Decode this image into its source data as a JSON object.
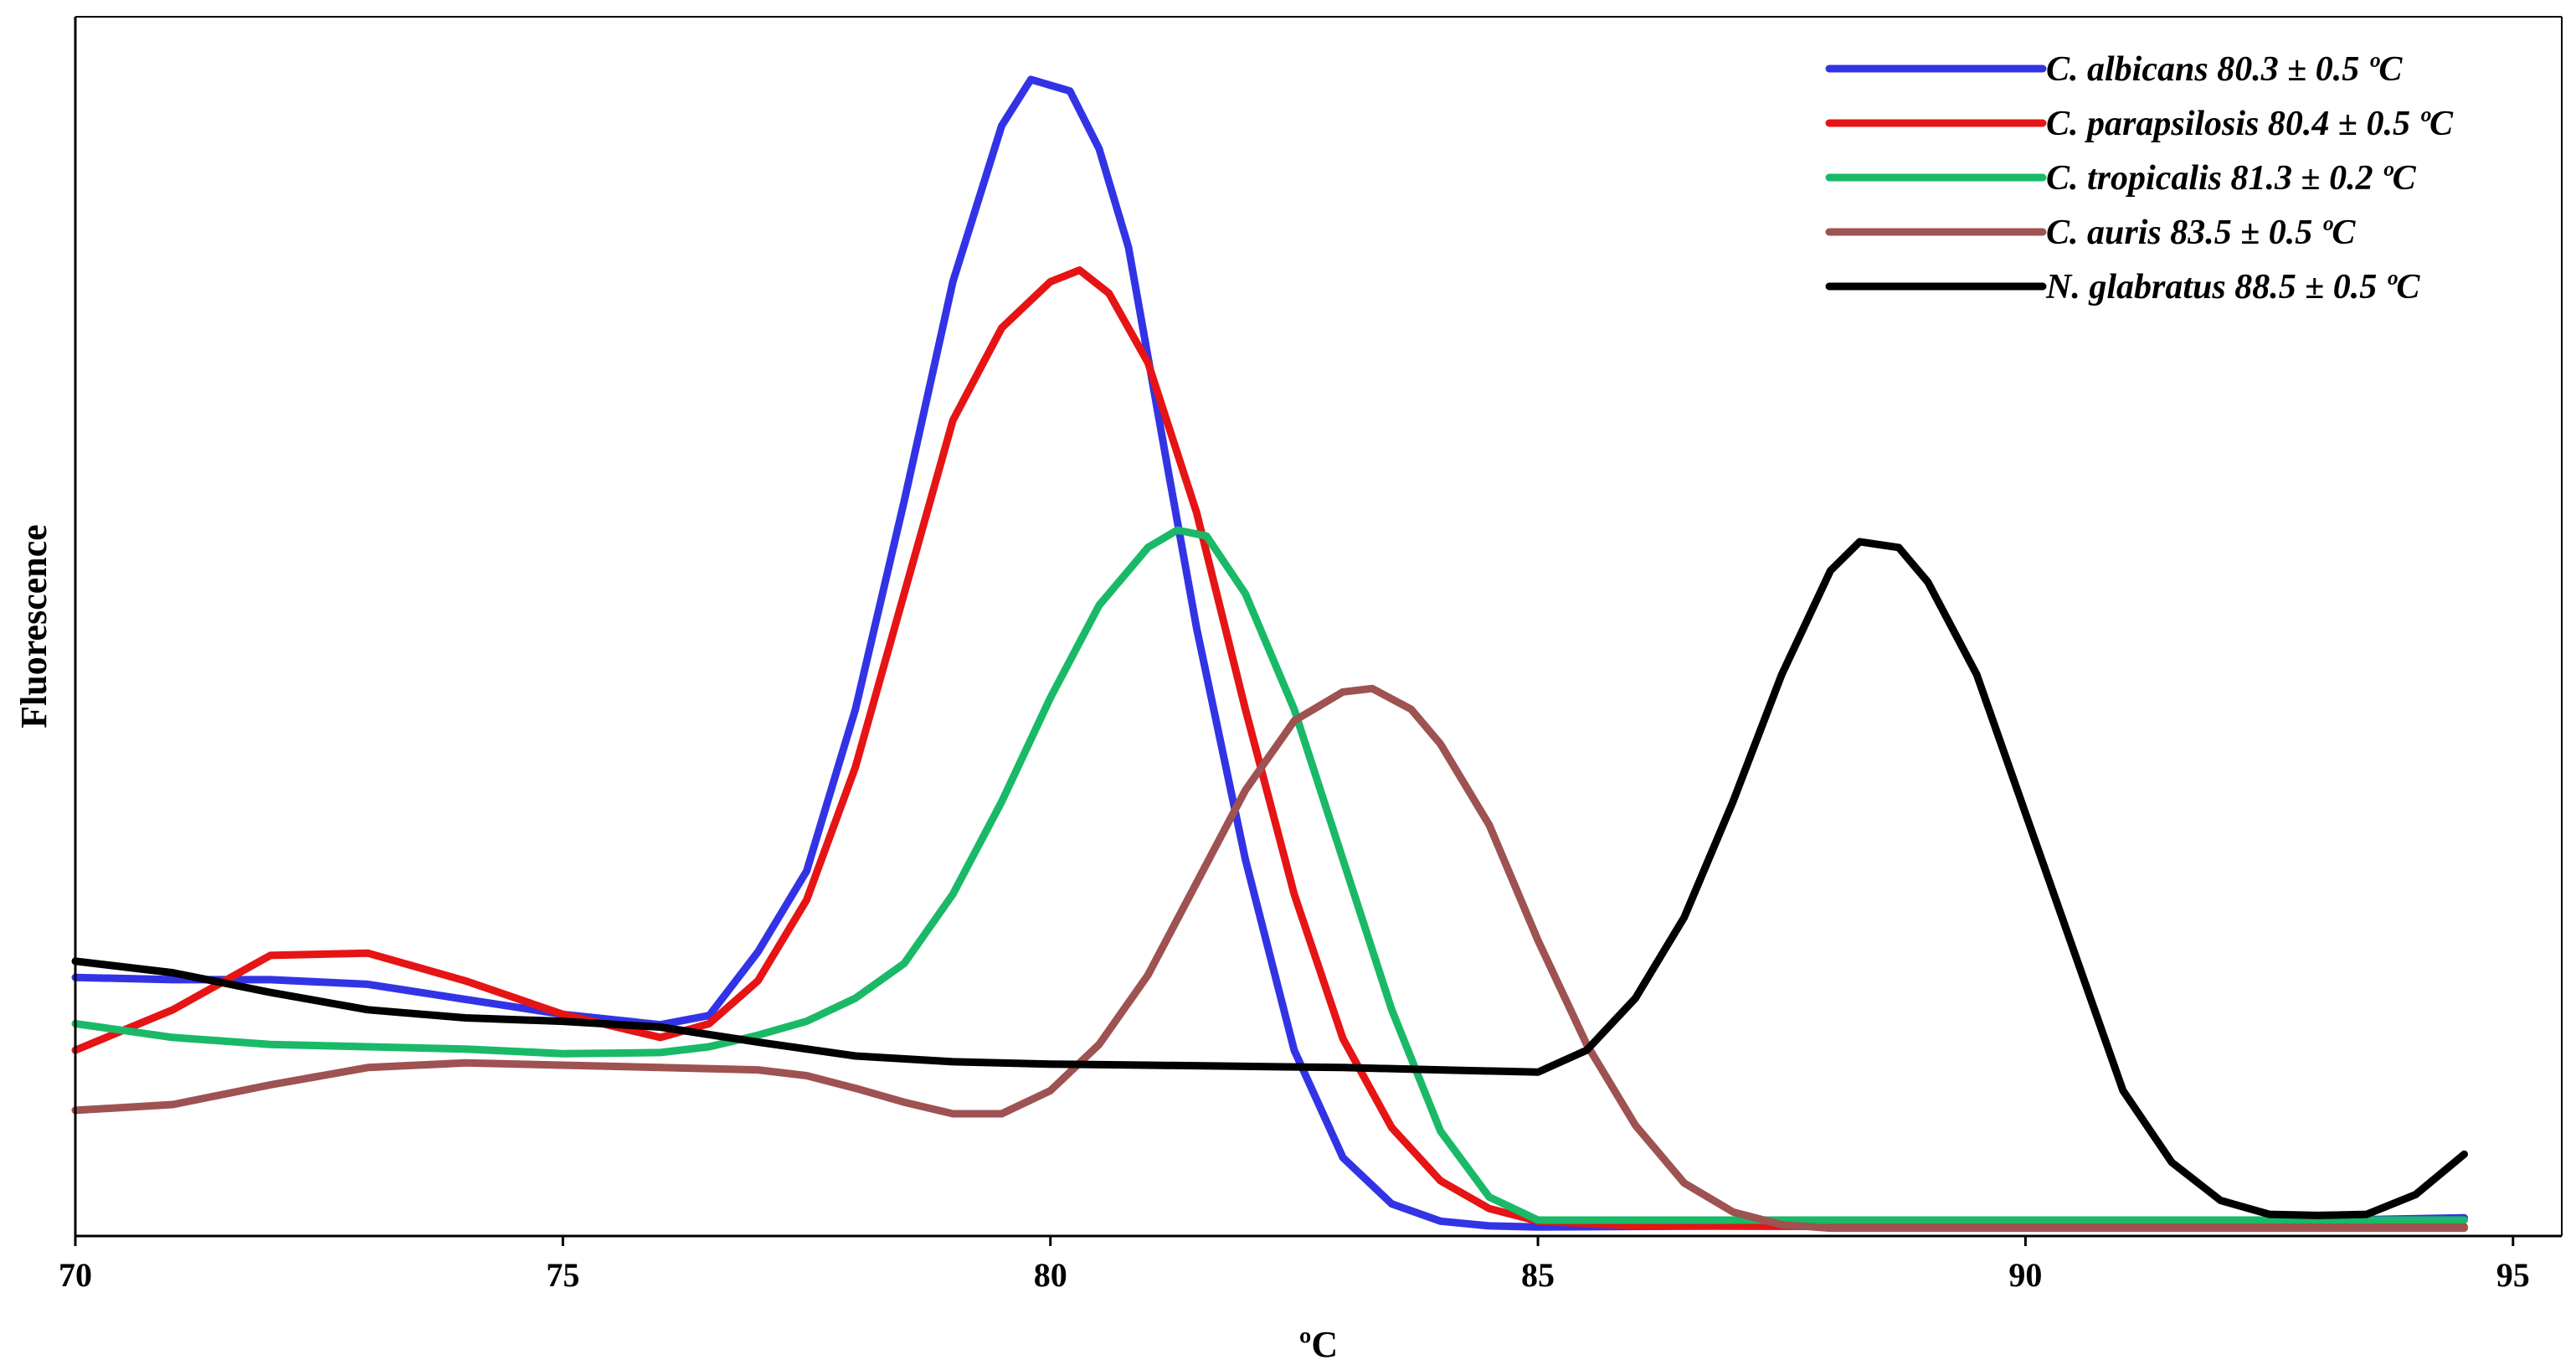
{
  "chart_data": {
    "type": "line",
    "xlabel": "ºC",
    "ylabel": "Fluorescence",
    "xlim": [
      70,
      95.5
    ],
    "ylim": [
      0,
      1
    ],
    "x_ticks": [
      "70",
      "75",
      "80",
      "85",
      "90",
      "95"
    ],
    "grid": false,
    "legend_position": "top-right",
    "series": [
      {
        "name": "C. albicans 80.3 ± 0.5 ºC",
        "color": "#3333e6",
        "x": [
          70,
          71,
          72,
          73,
          74,
          75,
          76,
          76.5,
          77,
          77.5,
          78,
          78.5,
          79,
          79.5,
          79.8,
          80.2,
          80.5,
          80.8,
          81.2,
          81.5,
          82,
          82.5,
          83,
          83.5,
          84,
          84.5,
          85,
          87,
          90,
          92,
          94.5
        ],
        "y": [
          0.218,
          0.216,
          0.216,
          0.212,
          0.199,
          0.186,
          0.177,
          0.185,
          0.24,
          0.31,
          0.45,
          0.63,
          0.82,
          0.955,
          0.995,
          0.985,
          0.935,
          0.85,
          0.66,
          0.52,
          0.32,
          0.155,
          0.062,
          0.022,
          0.007,
          0.003,
          0.002,
          0.003,
          0.004,
          0.006,
          0.01
        ]
      },
      {
        "name": "C. parapsilosis 80.4 ± 0.5 ºC",
        "color": "#e61414",
        "x": [
          70,
          71,
          72,
          73,
          74,
          75,
          76,
          76.5,
          77,
          77.5,
          78,
          78.5,
          79,
          79.5,
          80,
          80.3,
          80.6,
          81,
          81.5,
          82,
          82.5,
          83,
          83.5,
          84,
          84.5,
          85,
          86,
          90,
          94.5
        ],
        "y": [
          0.155,
          0.19,
          0.237,
          0.239,
          0.215,
          0.186,
          0.166,
          0.178,
          0.215,
          0.285,
          0.4,
          0.55,
          0.7,
          0.78,
          0.82,
          0.83,
          0.81,
          0.75,
          0.62,
          0.45,
          0.29,
          0.165,
          0.088,
          0.042,
          0.018,
          0.007,
          0.003,
          0.002,
          0.002
        ]
      },
      {
        "name": "C. tropicalis 81.3 ± 0.2 ºC",
        "color": "#19b968",
        "x": [
          70,
          71,
          72,
          73,
          74,
          75,
          76,
          76.5,
          77,
          77.5,
          78,
          78.5,
          79,
          79.5,
          80,
          80.5,
          81,
          81.3,
          81.6,
          82,
          82.5,
          83,
          83.5,
          84,
          84.5,
          85,
          86,
          90,
          94.5
        ],
        "y": [
          0.178,
          0.166,
          0.16,
          0.158,
          0.156,
          0.152,
          0.153,
          0.158,
          0.168,
          0.18,
          0.2,
          0.23,
          0.29,
          0.37,
          0.46,
          0.54,
          0.59,
          0.605,
          0.6,
          0.55,
          0.45,
          0.32,
          0.19,
          0.085,
          0.028,
          0.008,
          0.008,
          0.008,
          0.008
        ]
      },
      {
        "name": "C. auris 83.5 ± 0.5 ºC",
        "color": "#9e5252",
        "x": [
          70,
          71,
          72,
          73,
          74,
          75,
          76,
          77,
          77.5,
          78,
          78.5,
          79,
          79.5,
          80,
          80.5,
          81,
          81.5,
          82,
          82.5,
          83,
          83.3,
          83.7,
          84,
          84.5,
          85,
          85.5,
          86,
          86.5,
          87,
          87.5,
          88,
          90,
          94.5
        ],
        "y": [
          0.103,
          0.108,
          0.125,
          0.14,
          0.144,
          0.142,
          0.14,
          0.138,
          0.133,
          0.122,
          0.11,
          0.1,
          0.1,
          0.12,
          0.16,
          0.22,
          0.3,
          0.38,
          0.44,
          0.465,
          0.468,
          0.45,
          0.42,
          0.35,
          0.25,
          0.16,
          0.09,
          0.04,
          0.015,
          0.004,
          0.001,
          0.001,
          0.001
        ]
      },
      {
        "name": "N. glabratus 88.5 ± 0.5 ºC",
        "color": "#000000",
        "x": [
          70,
          71,
          72,
          73,
          74,
          75,
          76,
          77,
          78,
          79,
          80,
          81,
          82,
          83,
          84,
          85,
          85.5,
          86,
          86.5,
          87,
          87.5,
          88,
          88.3,
          88.7,
          89,
          89.5,
          90,
          90.5,
          91,
          91.5,
          92,
          92.5,
          93,
          93.5,
          94,
          94.5
        ],
        "y": [
          0.232,
          0.222,
          0.205,
          0.19,
          0.183,
          0.18,
          0.175,
          0.162,
          0.15,
          0.145,
          0.143,
          0.142,
          0.141,
          0.14,
          0.138,
          0.136,
          0.155,
          0.2,
          0.27,
          0.37,
          0.48,
          0.57,
          0.595,
          0.59,
          0.56,
          0.48,
          0.36,
          0.24,
          0.12,
          0.058,
          0.025,
          0.013,
          0.012,
          0.013,
          0.03,
          0.065
        ]
      }
    ]
  }
}
